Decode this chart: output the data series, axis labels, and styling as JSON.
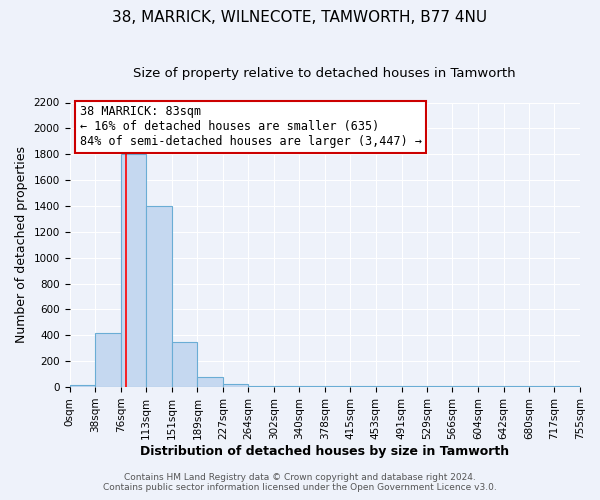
{
  "title": "38, MARRICK, WILNECOTE, TAMWORTH, B77 4NU",
  "subtitle": "Size of property relative to detached houses in Tamworth",
  "xlabel": "Distribution of detached houses by size in Tamworth",
  "ylabel": "Number of detached properties",
  "bin_edges": [
    0,
    38,
    76,
    113,
    151,
    189,
    227,
    264,
    302,
    340,
    378,
    415,
    453,
    491,
    529,
    566,
    604,
    642,
    680,
    717,
    755
  ],
  "bar_heights": [
    20,
    420,
    1800,
    1400,
    350,
    80,
    25,
    10,
    5,
    5,
    5,
    5,
    5,
    5,
    5,
    5,
    5,
    5,
    5,
    5
  ],
  "bar_color": "#c5d8f0",
  "bar_edge_color": "#6aadd5",
  "red_line_x": 83,
  "ylim": [
    0,
    2200
  ],
  "yticks": [
    0,
    200,
    400,
    600,
    800,
    1000,
    1200,
    1400,
    1600,
    1800,
    2000,
    2200
  ],
  "annotation_title": "38 MARRICK: 83sqm",
  "annotation_line1": "← 16% of detached houses are smaller (635)",
  "annotation_line2": "84% of semi-detached houses are larger (3,447) →",
  "annotation_box_color": "#ffffff",
  "annotation_box_edge": "#cc0000",
  "footer_line1": "Contains HM Land Registry data © Crown copyright and database right 2024.",
  "footer_line2": "Contains public sector information licensed under the Open Government Licence v3.0.",
  "bg_color": "#eef2fa",
  "grid_color": "#ffffff",
  "title_fontsize": 11,
  "subtitle_fontsize": 9.5,
  "axis_label_fontsize": 9,
  "tick_fontsize": 7.5,
  "annotation_fontsize": 8.5,
  "footer_fontsize": 6.5
}
